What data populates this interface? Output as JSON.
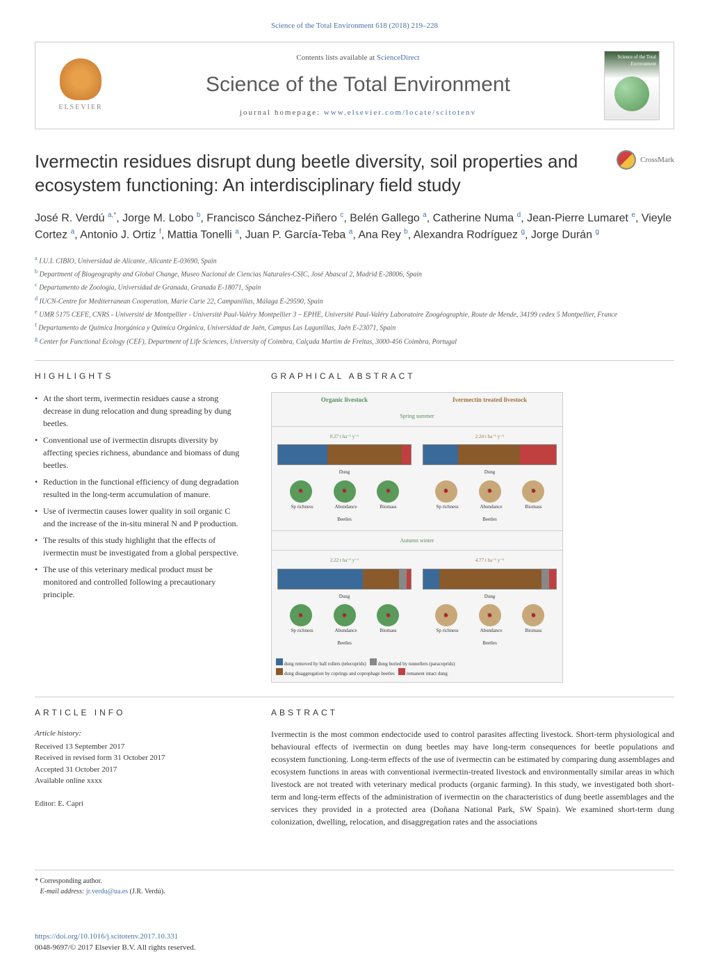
{
  "journal_ref": "Science of the Total Environment 618 (2018) 219–228",
  "journal_ref_link": "Science of the Total Environment 618 (2018) 219–228",
  "contents_text": "Contents lists available at ",
  "contents_link": "ScienceDirect",
  "journal_title": "Science of the Total Environment",
  "homepage_text": "journal homepage: ",
  "homepage_link": "www.elsevier.com/locate/scitotenv",
  "elsevier_label": "ELSEVIER",
  "cover_label": "Science of the Total Environment",
  "crossmark_label": "CrossMark",
  "article_title": "Ivermectin residues disrupt dung beetle diversity, soil properties and ecosystem functioning: An interdisciplinary field study",
  "authors_html": "José R. Verdú <sup>a,*</sup>, Jorge M. Lobo <sup>b</sup>, Francisco Sánchez-Piñero <sup>c</sup>, Belén Gallego <sup>a</sup>, Catherine Numa <sup>d</sup>, Jean-Pierre Lumaret <sup>e</sup>, Vieyle Cortez <sup>a</sup>, Antonio J. Ortiz <sup>f</sup>, Mattia Tonelli <sup>a</sup>, Juan P. García-Teba <sup>a</sup>, Ana Rey <sup>b</sup>, Alexandra Rodríguez <sup>g</sup>, Jorge Durán <sup>g</sup>",
  "affiliations": [
    {
      "sup": "a",
      "text": " I.U.I. CIBIO, Universidad de Alicante, Alicante E-03690, Spain"
    },
    {
      "sup": "b",
      "text": " Department of Biogeography and Global Change, Museo Nacional de Ciencias Naturales-CSIC, José Abascal 2, Madrid E-28006, Spain"
    },
    {
      "sup": "c",
      "text": " Departamento de Zoología, Universidad de Granada, Granada E-18071, Spain"
    },
    {
      "sup": "d",
      "text": " IUCN-Centre for Mediterranean Cooperation, Marie Curie 22, Campanillas, Málaga E-29590, Spain"
    },
    {
      "sup": "e",
      "text": " UMR 5175 CEFE, CNRS - Université de Montpellier - Université Paul-Valéry Montpellier 3 – EPHE, Université Paul-Valéry Laboratoire Zoogéographie, Route de Mende, 34199 cedex 5 Montpellier, France"
    },
    {
      "sup": "f",
      "text": " Departamento de Química Inorgánica y Química Orgánica, Universidad de Jaén, Campus Las Lagunillas, Jaén E-23071, Spain"
    },
    {
      "sup": "g",
      "text": " Center for Functional Ecology (CEF), Department of Life Sciences, University of Coimbra, Calçada Martim de Freitas, 3000-456 Coimbra, Portugal"
    }
  ],
  "highlights_heading": "HIGHLIGHTS",
  "highlights": [
    "At the short term, ivermectin residues cause a strong decrease in dung relocation and dung spreading by dung beetles.",
    "Conventional use of ivermectin disrupts diversity by affecting species richness, abundance and biomass of dung beetles.",
    "Reduction in the functional efficiency of dung degradation resulted in the long-term accumulation of manure.",
    "Use of ivermectin causes lower quality in soil organic C and the increase of the in-situ mineral N and P production.",
    "The results of this study highlight that the effects of ivermectin must be investigated from a global perspective.",
    "The use of this veterinary medical product must be monitored and controlled following a precautionary principle."
  ],
  "graphical_heading": "GRAPHICAL ABSTRACT",
  "ga": {
    "left_header": "Organic livestock",
    "right_header": "Ivermectin treated livestock",
    "spring": "Spring summer",
    "autumn": "Autumn winter",
    "dung_label": "Dung",
    "beetles_label": "Beetles",
    "rate_left_spring": "0.27 t ha⁻¹ y⁻¹",
    "rate_right_spring": "2.24 t ha⁻¹ y⁻¹",
    "rate_left_autumn": "2.22 t ha⁻¹ y⁻¹",
    "rate_right_autumn": "4.77 t ha⁻¹ y⁻¹",
    "beetle_labels": [
      "Sp richness",
      "Abundance",
      "Biomass"
    ],
    "legend1": "dung removed by ball rollers (telecoprids)",
    "legend2": "dung disaggregation by coprings and coprophage beetles",
    "legend3": "dung buried by tunnellers (paracoprids)",
    "legend4": "remanent intact dung",
    "colors": {
      "blue": "#3a6a9a",
      "brown": "#8a5a2a",
      "red": "#c04040",
      "green": "#5a9a5a",
      "lightbrown": "#c8a878",
      "grey": "#888888"
    }
  },
  "article_info_heading": "ARTICLE INFO",
  "article_history_heading": "Article history:",
  "article_history": [
    "Received 13 September 2017",
    "Received in revised form 31 October 2017",
    "Accepted 31 October 2017",
    "Available online xxxx"
  ],
  "editor_label": "Editor: E. Capri",
  "abstract_heading": "ABSTRACT",
  "abstract_text": "Ivermectin is the most common endectocide used to control parasites affecting livestock. Short-term physiological and behavioural effects of ivermectin on dung beetles may have long-term consequences for beetle populations and ecosystem functioning. Long-term effects of the use of ivermectin can be estimated by comparing dung assemblages and ecosystem functions in areas with conventional ivermectin-treated livestock and environmentally similar areas in which livestock are not treated with veterinary medical products (organic farming). In this study, we investigated both short-term and long-term effects of the administration of ivermectin on the characteristics of dung beetle assemblages and the services they provided in a protected area (Doñana National Park, SW Spain). We examined short-term dung colonization, dwelling, relocation, and disaggregation rates and the associations",
  "corresponding_label": "* Corresponding author.",
  "email_label": "E-mail address: ",
  "email_link": "jr.verdu@ua.es",
  "email_suffix": " (J.R. Verdú).",
  "doi_link": "https://doi.org/10.1016/j.scitotenv.2017.10.331",
  "copyright": "0048-9697/© 2017 Elsevier B.V. All rights reserved."
}
